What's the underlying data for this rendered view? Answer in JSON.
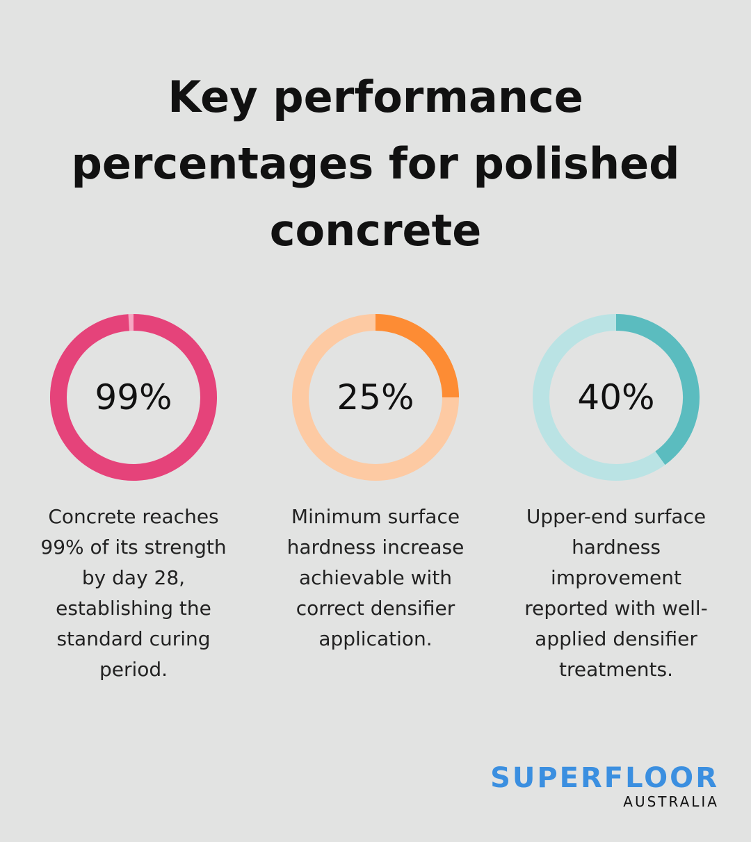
{
  "title": "Key performance percentages for polished concrete",
  "chart_data": [
    {
      "type": "donut",
      "value": 99,
      "value_label": "99%",
      "color": "#e5437a",
      "track_color": "#f6a8c3",
      "caption": "Concrete reaches 99% of its strength by day 28, establishing the standard curing period."
    },
    {
      "type": "donut",
      "value": 25,
      "value_label": "25%",
      "color": "#fd8c34",
      "track_color": "#fdcaa3",
      "caption": "Minimum surface hardness increase achievable with correct densifier application."
    },
    {
      "type": "donut",
      "value": 40,
      "value_label": "40%",
      "color": "#5bbcbf",
      "track_color": "#bae3e4",
      "caption": "Upper-end surface hardness improvement reported with well-applied densifier treatments."
    }
  ],
  "brand": {
    "name": "SUPERFLOOR",
    "sub": "AUSTRALIA"
  }
}
